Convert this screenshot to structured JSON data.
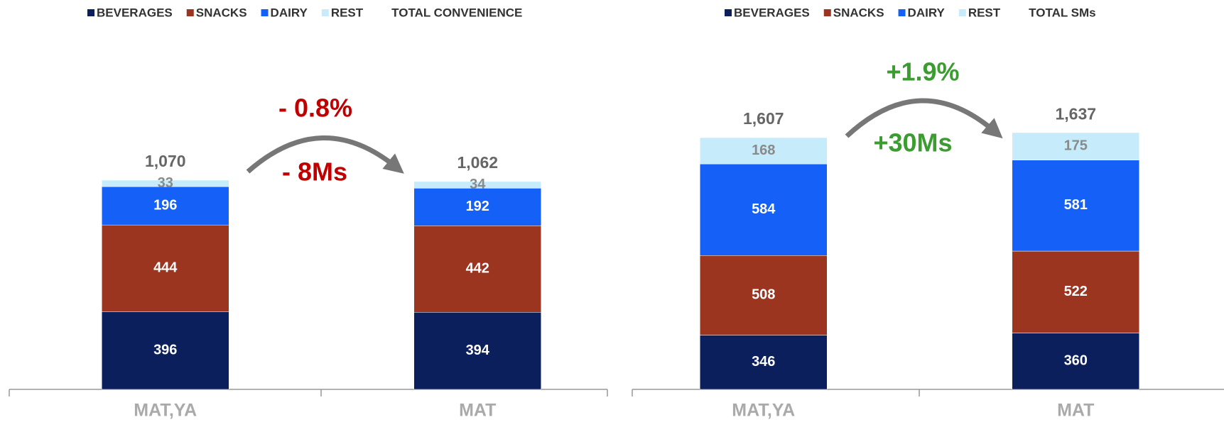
{
  "chart_data": [
    {
      "type": "stacked_bar",
      "categories": [
        "MAT,YA",
        "MAT"
      ],
      "series": [
        {
          "name": "BEVERAGES",
          "color": "#0a1f5c",
          "values": [
            396,
            394
          ]
        },
        {
          "name": "SNACKS",
          "color": "#9b3520",
          "values": [
            444,
            442
          ]
        },
        {
          "name": "DAIRY",
          "color": "#1560f6",
          "values": [
            196,
            192
          ]
        },
        {
          "name": "REST",
          "color": "#c6ecfb",
          "values": [
            33,
            34
          ]
        }
      ],
      "total": {
        "name": "TOTAL CONVENIENCE",
        "values": [
          1070,
          1062
        ],
        "value_labels": [
          "1,070",
          "1,062"
        ]
      },
      "annotations": [
        {
          "text": "- 0.8%",
          "color": "#c00000"
        },
        {
          "text": "- 8Ms",
          "color": "#c00000"
        }
      ],
      "ylim": [
        0,
        1830
      ]
    },
    {
      "type": "stacked_bar",
      "categories": [
        "MAT,YA",
        "MAT"
      ],
      "series": [
        {
          "name": "BEVERAGES",
          "color": "#0a1f5c",
          "values": [
            346,
            360
          ]
        },
        {
          "name": "SNACKS",
          "color": "#9b3520",
          "values": [
            508,
            522
          ]
        },
        {
          "name": "DAIRY",
          "color": "#1560f6",
          "values": [
            584,
            581
          ]
        },
        {
          "name": "REST",
          "color": "#c6ecfb",
          "values": [
            168,
            175
          ]
        }
      ],
      "total": {
        "name": "TOTAL SMs",
        "values": [
          1607,
          1637
        ],
        "value_labels": [
          "1,607",
          "1,637"
        ]
      },
      "annotations": [
        {
          "text": "+1.9%",
          "color": "#3c9c32"
        },
        {
          "text": "+30Ms",
          "color": "#3c9c32"
        }
      ],
      "ylim": [
        0,
        2285
      ]
    }
  ]
}
